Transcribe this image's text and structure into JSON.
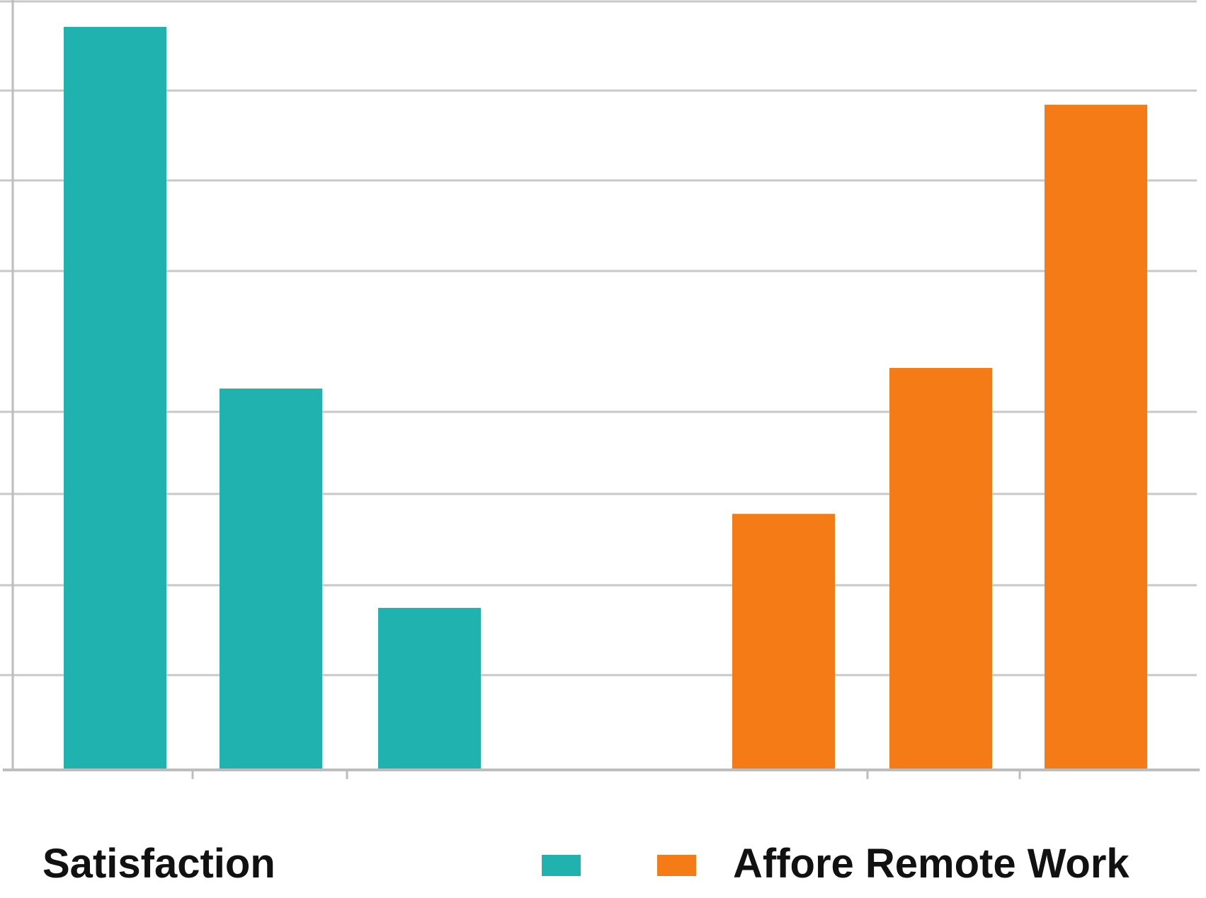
{
  "chart_data": {
    "type": "bar",
    "title": "",
    "xlabel": "",
    "ylabel": "",
    "categories": [
      "",
      "",
      "",
      "",
      "",
      ""
    ],
    "series": [
      {
        "name": "",
        "color": "#20B2AE",
        "values": [
          8.3,
          4.26,
          1.81,
          null,
          null,
          null
        ]
      },
      {
        "name": "Affore Remote Work",
        "color": "#F47B16",
        "values": [
          null,
          null,
          null,
          2.86,
          4.49,
          7.43
        ]
      }
    ],
    "ylim": [
      0,
      8.5
    ],
    "grid": true,
    "legend": {
      "placement": "bottom",
      "label_left": "Satisfaction",
      "items": [
        "",
        "Affore Remote Work"
      ]
    }
  }
}
